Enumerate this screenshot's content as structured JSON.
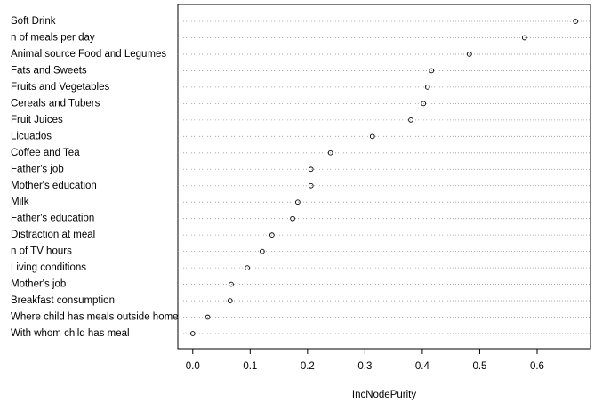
{
  "chart_data": {
    "type": "dot",
    "x_label": "IncNodePurity",
    "categories": [
      "Soft Drink",
      "n of meals per day",
      "Animal source Food and Legumes",
      "Fats and Sweets",
      "Fruits and Vegetables",
      "Cereals and Tubers",
      "Fruit Juices",
      "Licuados",
      "Coffee and Tea",
      "Father's job",
      "Mother's education",
      "Milk",
      "Father's education",
      "Distraction at meal",
      "n of TV hours",
      "Living conditions",
      "Mother's job",
      "Breakfast consumption",
      "Where child has meals outside home",
      "With whom child has meal"
    ],
    "values": [
      0.667,
      0.578,
      0.482,
      0.416,
      0.409,
      0.402,
      0.38,
      0.313,
      0.24,
      0.206,
      0.206,
      0.183,
      0.174,
      0.138,
      0.121,
      0.095,
      0.067,
      0.065,
      0.026,
      0.0
    ],
    "color": "#000000",
    "xlim": [
      -0.026,
      0.693
    ],
    "xticks": [
      {
        "value": 0,
        "label": "0.0"
      },
      0.1,
      0.2,
      0.3,
      0.4,
      0.5,
      0.6
    ],
    "grid": true
  }
}
